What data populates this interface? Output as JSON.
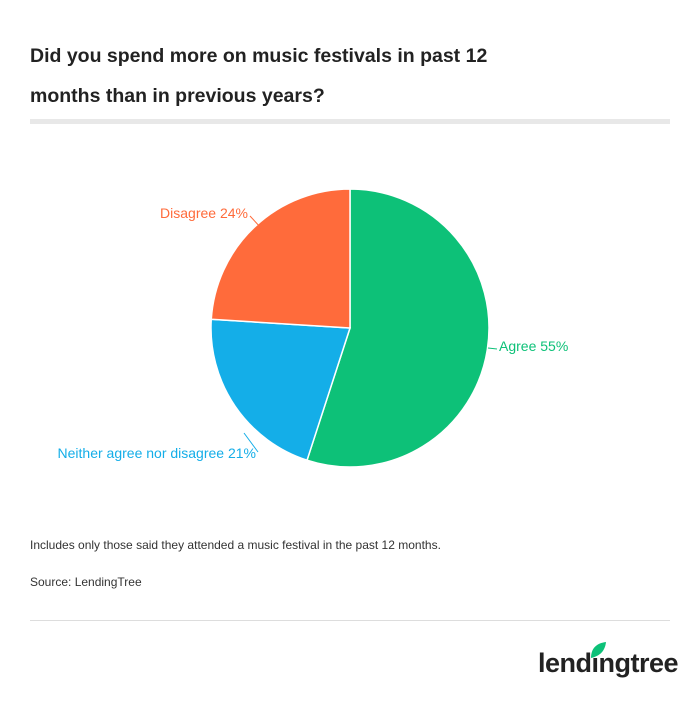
{
  "chart_data": {
    "type": "pie",
    "title": "Did you spend more on music festivals in past 12 months than in previous years?",
    "categories": [
      "Agree",
      "Neither agree nor disagree",
      "Disagree"
    ],
    "values": [
      55,
      21,
      24
    ],
    "value_labels": [
      "55%",
      "21%",
      "24%"
    ],
    "colors": [
      "#0dc178",
      "#14aee8",
      "#ff6b3b"
    ],
    "note": "Includes only those said they attended a music festival in the past 12 months.",
    "source": "Source: LendingTree"
  },
  "logo": "lendingtree"
}
